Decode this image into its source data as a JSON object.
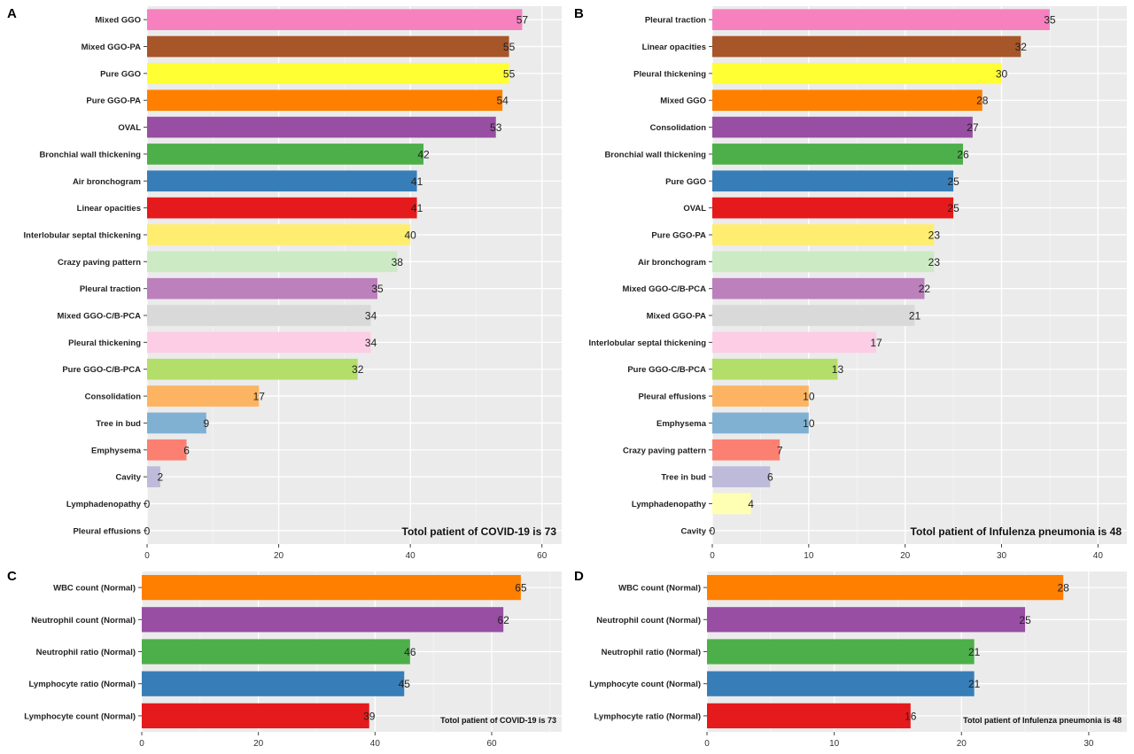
{
  "chart_data": [
    {
      "panel": "A",
      "type": "bar",
      "orientation": "horizontal",
      "categories": [
        "Mixed GGO",
        "Mixed GGO-PA",
        "Pure GGO",
        "Pure GGO-PA",
        "OVAL",
        "Bronchial wall thickening",
        "Air bronchogram",
        "Linear opacities",
        "Interlobular septal thickening",
        "Crazy paving pattern",
        "Pleural traction",
        "Mixed GGO-C/B-PCA",
        "Pleural thickening",
        "Pure GGO-C/B-PCA",
        "Consolidation",
        "Tree in bud",
        "Emphysema",
        "Cavity",
        "Lymphadenopathy",
        "Pleural effusions"
      ],
      "values": [
        57,
        55,
        55,
        54,
        53,
        42,
        41,
        41,
        40,
        38,
        35,
        34,
        34,
        32,
        17,
        9,
        6,
        2,
        0,
        0
      ],
      "colors": [
        "#F781BF",
        "#A65628",
        "#FFFF33",
        "#FF7F00",
        "#984EA3",
        "#4DAF4A",
        "#377EB8",
        "#E41A1C",
        "#FFED6F",
        "#CCEBC5",
        "#BC80BD",
        "#D9D9D9",
        "#FCCDE5",
        "#B3DE69",
        "#FDB462",
        "#80B1D3",
        "#FB8072",
        "#BEBADA",
        "#FFFFB3",
        "#8DD3C7"
      ],
      "xlim": [
        0,
        63
      ],
      "xticks": [
        0,
        20,
        40,
        60
      ],
      "annotation": "Totol patient of COVID-19 is 73",
      "grid": true
    },
    {
      "panel": "B",
      "type": "bar",
      "orientation": "horizontal",
      "categories": [
        "Pleural traction",
        "Linear opacities",
        "Pleural thickening",
        "Mixed GGO",
        "Consolidation",
        "Bronchial wall thickening",
        "Pure GGO",
        "OVAL",
        "Pure GGO-PA",
        "Air bronchogram",
        "Mixed GGO-C/B-PCA",
        "Mixed GGO-PA",
        "Interlobular septal thickening",
        "Pure GGO-C/B-PCA",
        "Pleural effusions",
        "Emphysema",
        "Crazy paving pattern",
        "Tree in bud",
        "Lymphadenopathy",
        "Cavity"
      ],
      "values": [
        35,
        32,
        30,
        28,
        27,
        26,
        25,
        25,
        23,
        23,
        22,
        21,
        17,
        13,
        10,
        10,
        7,
        6,
        4,
        0
      ],
      "colors": [
        "#F781BF",
        "#A65628",
        "#FFFF33",
        "#FF7F00",
        "#984EA3",
        "#4DAF4A",
        "#377EB8",
        "#E41A1C",
        "#FFED6F",
        "#CCEBC5",
        "#BC80BD",
        "#D9D9D9",
        "#FCCDE5",
        "#B3DE69",
        "#FDB462",
        "#80B1D3",
        "#FB8072",
        "#BEBADA",
        "#FFFFB3",
        "#8DD3C7"
      ],
      "xlim": [
        0,
        43
      ],
      "xticks": [
        0,
        10,
        20,
        30,
        40
      ],
      "annotation": "Totol patient of Infulenza pneumonia is 48",
      "grid": true
    },
    {
      "panel": "C",
      "type": "bar",
      "orientation": "horizontal",
      "categories": [
        "WBC count (Normal)",
        "Neutrophil count (Normal)",
        "Neutrophil ratio (Normal)",
        "Lymphocyte ratio (Normal)",
        "Lymphocyte count (Normal)"
      ],
      "values": [
        65,
        62,
        46,
        45,
        39
      ],
      "colors": [
        "#FF7F00",
        "#984EA3",
        "#4DAF4A",
        "#377EB8",
        "#E41A1C"
      ],
      "xlim": [
        0,
        72
      ],
      "xticks": [
        0,
        20,
        40,
        60
      ],
      "annotation": "Totol patient of COVID-19 is 73",
      "grid": true
    },
    {
      "panel": "D",
      "type": "bar",
      "orientation": "horizontal",
      "categories": [
        "WBC count (Normal)",
        "Neutrophil count (Normal)",
        "Neutrophil ratio (Normal)",
        "Lymphocyte count (Normal)",
        "Lymphocyte ratio (Normal)"
      ],
      "values": [
        28,
        25,
        21,
        21,
        16
      ],
      "colors": [
        "#FF7F00",
        "#984EA3",
        "#4DAF4A",
        "#377EB8",
        "#E41A1C"
      ],
      "xlim": [
        0,
        33
      ],
      "xticks": [
        0,
        10,
        20,
        30
      ],
      "annotation": "Totol patient of Infulenza pneumonia is 48",
      "grid": true
    }
  ]
}
